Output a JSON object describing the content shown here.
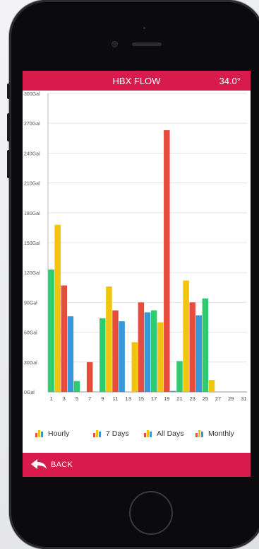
{
  "header": {
    "title": "HBX FLOW",
    "temperature": "34.0°"
  },
  "footer": {
    "back_label": "BACK"
  },
  "legend": [
    {
      "label": "Hourly"
    },
    {
      "label": "7 Days"
    },
    {
      "label": "All Days"
    },
    {
      "label": "Monthly"
    }
  ],
  "colors": {
    "brand": "#d81b4c",
    "green": "#2ecc71",
    "yellow": "#f1c40f",
    "red": "#e74c3c",
    "blue": "#3498db"
  },
  "chart_data": {
    "type": "bar",
    "ylabels": [
      "0Gal",
      "30Gal",
      "60Gal",
      "90Gal",
      "120Gal",
      "150Gal",
      "180Gal",
      "210Gal",
      "240Gal",
      "270Gal",
      "300Gal"
    ],
    "ylim": [
      0,
      300
    ],
    "xlabels": [
      "1",
      "3",
      "5",
      "7",
      "9",
      "11",
      "13",
      "15",
      "17",
      "19",
      "21",
      "23",
      "25",
      "27",
      "29",
      "31"
    ],
    "grid": true,
    "bars": [
      {
        "day": 1,
        "value": 123,
        "color": "green"
      },
      {
        "day": 2,
        "value": 168,
        "color": "yellow"
      },
      {
        "day": 3,
        "value": 107,
        "color": "red"
      },
      {
        "day": 4,
        "value": 76,
        "color": "blue"
      },
      {
        "day": 5,
        "value": 11,
        "color": "green"
      },
      {
        "day": 7,
        "value": 30,
        "color": "red"
      },
      {
        "day": 9,
        "value": 74,
        "color": "green"
      },
      {
        "day": 10,
        "value": 106,
        "color": "yellow"
      },
      {
        "day": 11,
        "value": 82,
        "color": "red"
      },
      {
        "day": 12,
        "value": 71,
        "color": "blue"
      },
      {
        "day": 14,
        "value": 50,
        "color": "yellow"
      },
      {
        "day": 15,
        "value": 90,
        "color": "red"
      },
      {
        "day": 16,
        "value": 80,
        "color": "blue"
      },
      {
        "day": 17,
        "value": 82,
        "color": "green"
      },
      {
        "day": 18,
        "value": 70,
        "color": "yellow"
      },
      {
        "day": 19,
        "value": 263,
        "color": "red"
      },
      {
        "day": 20,
        "value": 1,
        "color": "blue"
      },
      {
        "day": 21,
        "value": 31,
        "color": "green"
      },
      {
        "day": 22,
        "value": 112,
        "color": "yellow"
      },
      {
        "day": 23,
        "value": 90,
        "color": "red"
      },
      {
        "day": 24,
        "value": 77,
        "color": "blue"
      },
      {
        "day": 25,
        "value": 94,
        "color": "green"
      },
      {
        "day": 26,
        "value": 12,
        "color": "yellow"
      }
    ]
  }
}
